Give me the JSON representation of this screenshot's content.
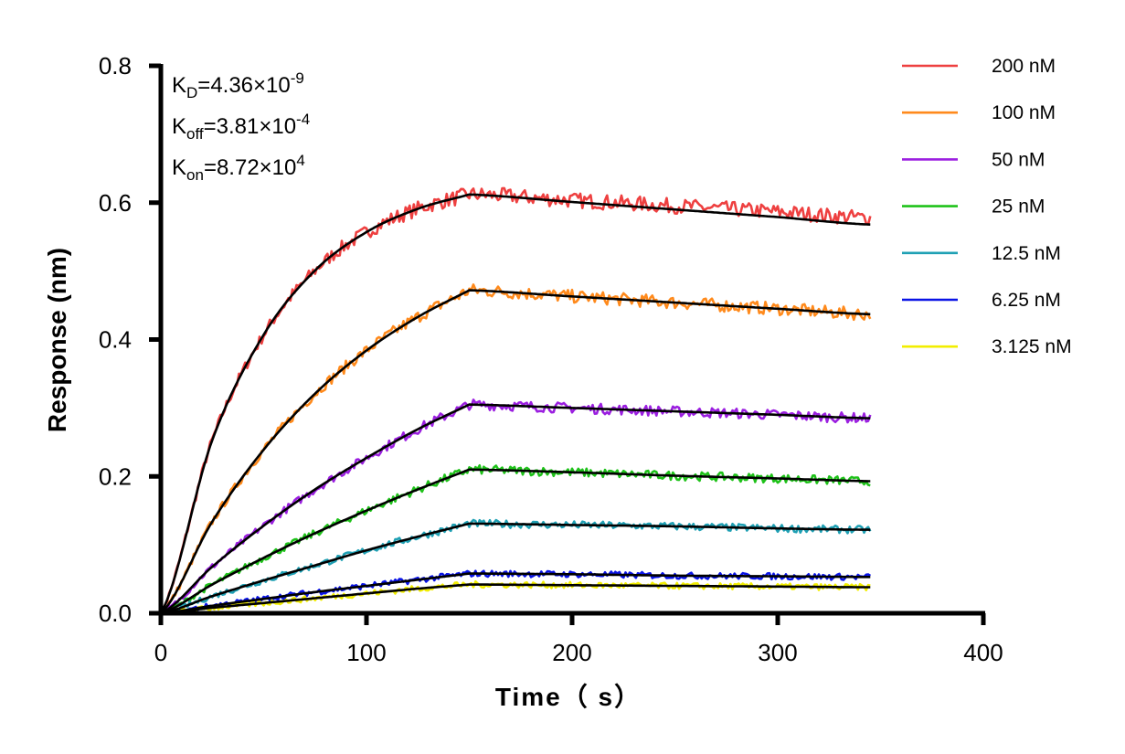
{
  "chart_data": {
    "type": "line",
    "title": "",
    "xlabel": "Time（ s）",
    "ylabel": "Response (nm)",
    "xlim": [
      0,
      400
    ],
    "ylim": [
      0,
      0.8
    ],
    "x_ticks": [
      "0",
      "100",
      "200",
      "300",
      "400"
    ],
    "y_ticks": [
      "0.0",
      "0.2",
      "0.4",
      "0.6",
      "0.8"
    ],
    "grid": false,
    "legend_position": "top-right",
    "annotations": [
      {
        "main": "K",
        "sub": "D",
        "rest": "=4.36×10",
        "sup": "-9"
      },
      {
        "main": "K",
        "sub": "off",
        "rest": "=3.81×10",
        "sup": "-4"
      },
      {
        "main": "K",
        "sub": "on",
        "rest": "=8.72×10",
        "sup": "4"
      }
    ],
    "fit_color": "#000000",
    "fit_x": [
      0,
      25,
      50,
      75,
      100,
      125,
      150,
      200,
      250,
      300,
      345
    ],
    "series": [
      {
        "name": "200 nM",
        "color": "#ee4040",
        "fit": [
          0,
          0.253,
          0.407,
          0.501,
          0.557,
          0.591,
          0.612,
          0.601,
          0.59,
          0.579,
          0.568
        ]
      },
      {
        "name": "100 nM",
        "color": "#ff8a1c",
        "fit": [
          0,
          0.134,
          0.239,
          0.321,
          0.384,
          0.433,
          0.472,
          0.463,
          0.454,
          0.445,
          0.437
        ]
      },
      {
        "name": "50 nM",
        "color": "#9b1fe0",
        "fit": [
          0,
          0.068,
          0.128,
          0.181,
          0.227,
          0.269,
          0.305,
          0.3,
          0.295,
          0.29,
          0.285
        ]
      },
      {
        "name": "25 nM",
        "color": "#1fc21a",
        "fit": [
          0,
          0.042,
          0.081,
          0.117,
          0.15,
          0.181,
          0.21,
          0.206,
          0.201,
          0.197,
          0.193
        ]
      },
      {
        "name": "12.5 nM",
        "color": "#1fa0b4",
        "fit": [
          0,
          0.025,
          0.048,
          0.07,
          0.092,
          0.112,
          0.131,
          0.129,
          0.127,
          0.124,
          0.122
        ]
      },
      {
        "name": "6.25 nM",
        "color": "#0a14e6",
        "fit": [
          0,
          0.011,
          0.021,
          0.031,
          0.04,
          0.049,
          0.058,
          0.057,
          0.055,
          0.054,
          0.053
        ]
      },
      {
        "name": "3.125 nM",
        "color": "#f2ee00",
        "fit": [
          0,
          0.008,
          0.015,
          0.022,
          0.029,
          0.036,
          0.042,
          0.041,
          0.04,
          0.039,
          0.038
        ]
      }
    ]
  }
}
